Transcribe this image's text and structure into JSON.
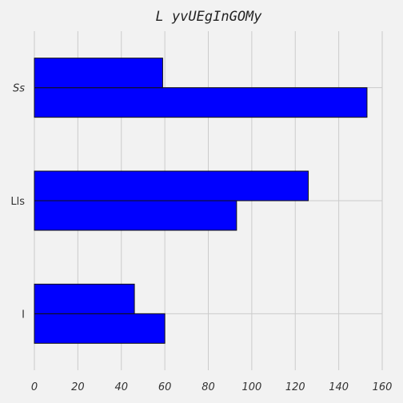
{
  "chart_data": {
    "type": "bar",
    "orientation": "horizontal",
    "title": "L yvUEgInGOMy",
    "xlabel": "",
    "ylabel": "",
    "categories": [
      "I",
      "Lls",
      "Ss"
    ],
    "category_label_styles": [
      "normal",
      "normal",
      "italic"
    ],
    "series": [
      {
        "values": [
          60,
          93,
          153
        ],
        "color": "#0000ff"
      },
      {
        "values": [
          46,
          126,
          59
        ],
        "color": "#0000ff"
      }
    ],
    "xlim": [
      0,
      160
    ],
    "xticks": [
      "0",
      "20",
      "40",
      "60",
      "80",
      "100",
      "120",
      "140",
      "160"
    ],
    "grid": true,
    "legend": "none",
    "background": "#f2f2f2"
  }
}
